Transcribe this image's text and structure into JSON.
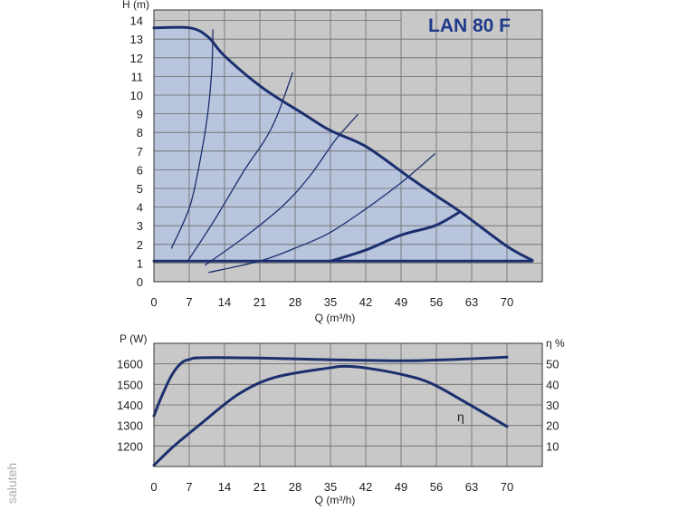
{
  "watermark": "saluteh",
  "colors": {
    "plot_bg": "#c8c8c8",
    "operating_area": "#b9c4dd",
    "curve": "#1b2f6e",
    "grid": "#6a6a6a",
    "title": "#1f3a8a"
  },
  "chart_data": [
    {
      "type": "line",
      "title": "LAN 80 F",
      "xlabel": "Q (m³/h)",
      "ylabel": "H (m)",
      "xlim": [
        0,
        77
      ],
      "ylim": [
        0,
        14.5
      ],
      "x_ticks": [
        "0",
        "7",
        "14",
        "21",
        "28",
        "35",
        "42",
        "49",
        "56",
        "63",
        "70"
      ],
      "y_ticks": [
        "0",
        "1",
        "2",
        "3",
        "4",
        "5",
        "6",
        "7",
        "8",
        "9",
        "10",
        "11",
        "12",
        "13",
        "14"
      ],
      "grid": true,
      "shaded_area": "between minimum line and maximum curve",
      "series": [
        {
          "role": "max-curve",
          "points": [
            [
              0,
              13.6
            ],
            [
              7.2,
              13.6
            ],
            [
              10.8,
              13.1
            ],
            [
              14,
              12.1
            ],
            [
              21.5,
              10.4
            ],
            [
              29.9,
              8.95
            ],
            [
              35,
              8.1
            ],
            [
              42,
              7.25
            ],
            [
              50.6,
              5.6
            ],
            [
              56,
              4.6
            ],
            [
              61,
              3.7
            ],
            [
              70,
              1.9
            ],
            [
              75,
              1.15
            ]
          ]
        },
        {
          "role": "min-line",
          "points": [
            [
              0,
              1.1
            ],
            [
              75,
              1.1
            ]
          ]
        },
        {
          "role": "system-curve",
          "points": [
            [
              3.5,
              1.8
            ],
            [
              7.2,
              4.1
            ],
            [
              9.5,
              7
            ],
            [
              10.8,
              9.3
            ],
            [
              11.5,
              11.5
            ],
            [
              11.7,
              13.5
            ]
          ]
        },
        {
          "role": "system-curve",
          "points": [
            [
              6.7,
              1.1
            ],
            [
              12,
              3.3
            ],
            [
              18,
              6.0
            ],
            [
              22,
              7.6
            ],
            [
              24.5,
              8.95
            ],
            [
              27.5,
              11.2
            ]
          ]
        },
        {
          "role": "system-curve",
          "points": [
            [
              10.2,
              0.9
            ],
            [
              18,
              2.4
            ],
            [
              25.7,
              4.1
            ],
            [
              31,
              5.7
            ],
            [
              36,
              7.6
            ],
            [
              40.4,
              8.95
            ]
          ]
        },
        {
          "role": "system-curve",
          "points": [
            [
              10.9,
              0.5
            ],
            [
              20.9,
              1.1
            ],
            [
              28,
              1.8
            ],
            [
              34.7,
              2.6
            ],
            [
              42,
              3.9
            ],
            [
              49,
              5.3
            ],
            [
              55.7,
              6.85
            ]
          ]
        },
        {
          "role": "system-curve-thick",
          "points": [
            [
              35,
              1.1
            ],
            [
              42,
              1.7
            ],
            [
              49,
              2.5
            ],
            [
              55.7,
              3.0
            ],
            [
              60.4,
              3.7
            ]
          ]
        }
      ]
    },
    {
      "type": "line",
      "xlabel": "Q (m³/h)",
      "ylabel": "P (W)",
      "ylabel_right": "η %",
      "xlim": [
        0,
        77
      ],
      "ylim": [
        1100,
        1700
      ],
      "ylim_right": [
        0,
        60
      ],
      "x_ticks": [
        "0",
        "7",
        "14",
        "21",
        "28",
        "35",
        "42",
        "49",
        "56",
        "63",
        "70"
      ],
      "y_ticks": [
        "1200",
        "1300",
        "1400",
        "1500",
        "1600"
      ],
      "y_ticks_right": [
        "10",
        "20",
        "30",
        "40",
        "50"
      ],
      "grid": true,
      "annotation": "η",
      "series": [
        {
          "role": "power",
          "axis": "left",
          "points": [
            [
              0,
              1346
            ],
            [
              1.5,
              1440
            ],
            [
              3.6,
              1548
            ],
            [
              5.5,
              1605
            ],
            [
              7.1,
              1622
            ],
            [
              9.6,
              1630
            ],
            [
              21,
              1628
            ],
            [
              35,
              1620
            ],
            [
              49,
              1615
            ],
            [
              60,
              1622
            ],
            [
              70,
              1633
            ]
          ]
        },
        {
          "role": "efficiency",
          "axis": "right",
          "points": [
            [
              0,
              0.6
            ],
            [
              4,
              10
            ],
            [
              9.6,
              21.4
            ],
            [
              16.8,
              35.3
            ],
            [
              24,
              43.4
            ],
            [
              34.7,
              48
            ],
            [
              38,
              48.8
            ],
            [
              42,
              48
            ],
            [
              49,
              44.9
            ],
            [
              55,
              40.5
            ],
            [
              63,
              29.5
            ],
            [
              70,
              19.5
            ]
          ]
        }
      ]
    }
  ]
}
